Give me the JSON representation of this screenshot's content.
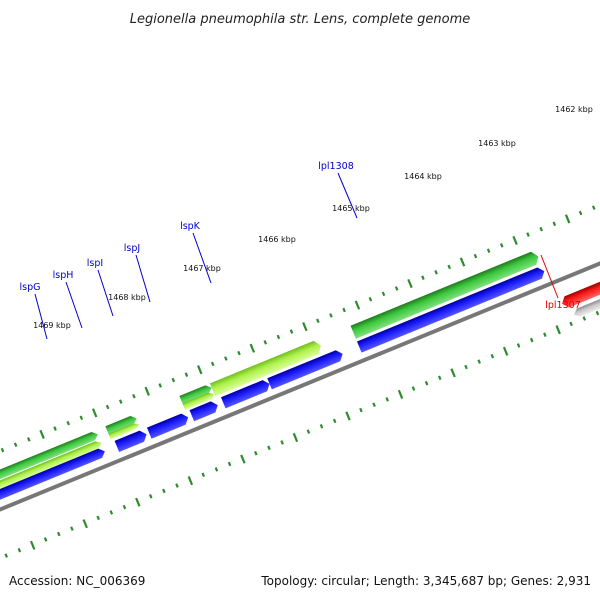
{
  "title": "Legionella pneumophila str. Lens, complete genome",
  "footer": {
    "accession": "Accession: NC_006369",
    "stats": "Topology: circular; Length: 3,345,687 bp; Genes: 2,931"
  },
  "kbp_labels": [
    "1462 kbp",
    "1463 kbp",
    "1464 kbp",
    "1465 kbp",
    "1466 kbp",
    "1467 kbp",
    "1468 kbp",
    "1469 kbp"
  ],
  "gene_labels": [
    {
      "text": "lspG",
      "color": "#0000cc"
    },
    {
      "text": "lspH",
      "color": "#0000cc"
    },
    {
      "text": "lspI",
      "color": "#0000cc"
    },
    {
      "text": "lspJ",
      "color": "#0000cc"
    },
    {
      "text": "lspK",
      "color": "#0000cc"
    },
    {
      "text": "lpl1308",
      "color": "#0000cc"
    },
    {
      "text": "lpl1307",
      "color": "#dd0000"
    }
  ],
  "colors": {
    "backbone": "#777777",
    "ticks": "#2e8b2e",
    "cds_blue": "#0000ee",
    "gene_green": "#33bb33",
    "gene_lime": "#99ee33",
    "cds_red": "#ee0000",
    "pseudo_grey": "#bbbbbb"
  }
}
